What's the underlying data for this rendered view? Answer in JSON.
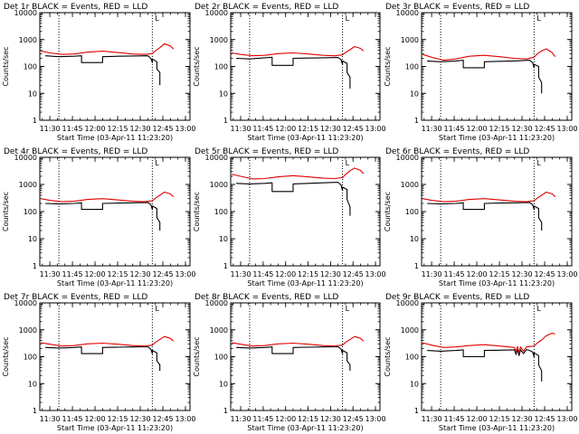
{
  "colors": {
    "events": "#000000",
    "lld": "#e00000",
    "background": "#ffffff",
    "frame": "#000000"
  },
  "chart_data": [
    {
      "type": "line",
      "title": "Det 1r BLACK = Events, RED = LLD",
      "flag": "L",
      "xlabel": "Start Time (03-Apr-11 11:23:20)",
      "ylabel": "Counts/sec",
      "x_ticks": [
        "11:30",
        "11:45",
        "12:00",
        "12:15",
        "12:30",
        "12:45",
        "13:00"
      ],
      "y_ticks": [
        "1",
        "10",
        "100",
        "1000",
        "10000"
      ],
      "yscale": "log",
      "xlim": [
        "11:23:20",
        "13:03:00"
      ],
      "ylim": [
        1,
        10000
      ],
      "vlines": [
        "11:36",
        "12:38"
      ],
      "series": [
        {
          "name": "Events",
          "color": "#000000",
          "x": [
            "11:27",
            "11:36",
            "11:46",
            "11:51",
            "11:51",
            "12:05",
            "12:05",
            "12:15",
            "12:25",
            "12:35",
            "12:37",
            "12:38",
            "12:38",
            "12:41",
            "12:41",
            "12:43",
            "12:43"
          ],
          "y": [
            250,
            230,
            240,
            250,
            140,
            140,
            230,
            240,
            245,
            250,
            200,
            140,
            190,
            150,
            80,
            60,
            20
          ]
        },
        {
          "name": "LLD",
          "color": "#e00000",
          "x": [
            "11:24",
            "11:30",
            "11:38",
            "11:46",
            "11:55",
            "12:05",
            "12:15",
            "12:25",
            "12:33",
            "12:38",
            "12:40",
            "12:43",
            "12:46",
            "12:50",
            "12:52"
          ],
          "y": [
            380,
            320,
            280,
            290,
            340,
            370,
            330,
            290,
            280,
            300,
            380,
            500,
            700,
            580,
            450
          ]
        }
      ]
    },
    {
      "type": "line",
      "title": "Det 2r BLACK = Events, RED = LLD",
      "flag": "L",
      "xlabel": "Start Time (03-Apr-11 11:23:20)",
      "ylabel": "Counts/sec",
      "x_ticks": [
        "11:30",
        "11:45",
        "12:00",
        "12:15",
        "12:30",
        "12:45",
        "13:00"
      ],
      "y_ticks": [
        "1",
        "10",
        "100",
        "1000",
        "10000"
      ],
      "yscale": "log",
      "xlim": [
        "11:23:20",
        "13:03:00"
      ],
      "ylim": [
        1,
        10000
      ],
      "vlines": [
        "11:36",
        "12:38"
      ],
      "series": [
        {
          "name": "Events",
          "color": "#000000",
          "x": [
            "11:27",
            "11:36",
            "11:46",
            "11:51",
            "11:51",
            "12:05",
            "12:05",
            "12:15",
            "12:25",
            "12:35",
            "12:37",
            "12:38",
            "12:38",
            "12:41",
            "12:41",
            "12:43",
            "12:43"
          ],
          "y": [
            200,
            190,
            210,
            220,
            110,
            110,
            200,
            205,
            210,
            215,
            180,
            120,
            160,
            130,
            60,
            40,
            15
          ]
        },
        {
          "name": "LLD",
          "color": "#e00000",
          "x": [
            "11:24",
            "11:30",
            "11:38",
            "11:46",
            "11:55",
            "12:05",
            "12:15",
            "12:25",
            "12:33",
            "12:38",
            "12:40",
            "12:43",
            "12:46",
            "12:50",
            "12:52"
          ],
          "y": [
            320,
            280,
            250,
            260,
            300,
            320,
            290,
            260,
            250,
            270,
            330,
            420,
            550,
            470,
            380
          ]
        }
      ]
    },
    {
      "type": "line",
      "title": "Det 3r BLACK = Events, RED = LLD",
      "flag": "L",
      "xlabel": "Start Time (03-Apr-11 11:23:20)",
      "ylabel": "Counts/sec",
      "x_ticks": [
        "11:30",
        "11:45",
        "12:00",
        "12:15",
        "12:30",
        "12:45",
        "13:00"
      ],
      "y_ticks": [
        "1",
        "10",
        "100",
        "1000",
        "10000"
      ],
      "yscale": "log",
      "xlim": [
        "11:23:20",
        "13:03:00"
      ],
      "ylim": [
        1,
        10000
      ],
      "vlines": [
        "11:36",
        "12:38"
      ],
      "series": [
        {
          "name": "Events",
          "color": "#000000",
          "x": [
            "11:27",
            "11:36",
            "11:46",
            "11:51",
            "11:51",
            "12:05",
            "12:05",
            "12:15",
            "12:25",
            "12:35",
            "12:37",
            "12:38",
            "12:38",
            "12:41",
            "12:41",
            "12:43",
            "12:43"
          ],
          "y": [
            160,
            150,
            160,
            170,
            90,
            90,
            150,
            155,
            160,
            170,
            140,
            90,
            120,
            100,
            40,
            25,
            10
          ]
        },
        {
          "name": "LLD",
          "color": "#e00000",
          "x": [
            "11:24",
            "11:30",
            "11:38",
            "11:46",
            "11:55",
            "12:05",
            "12:15",
            "12:25",
            "12:33",
            "12:38",
            "12:40",
            "12:43",
            "12:46",
            "12:50",
            "12:52"
          ],
          "y": [
            280,
            220,
            170,
            190,
            240,
            260,
            230,
            200,
            190,
            220,
            290,
            380,
            450,
            330,
            230
          ]
        }
      ]
    },
    {
      "type": "line",
      "title": "Det 4r BLACK = Events, RED = LLD",
      "flag": "L",
      "xlabel": "Start Time (03-Apr-11 11:23:20)",
      "ylabel": "Counts/sec",
      "x_ticks": [
        "11:30",
        "11:45",
        "12:00",
        "12:15",
        "12:30",
        "12:45",
        "13:00"
      ],
      "y_ticks": [
        "1",
        "10",
        "100",
        "1000",
        "10000"
      ],
      "yscale": "log",
      "xlim": [
        "11:23:20",
        "13:03:00"
      ],
      "ylim": [
        1,
        10000
      ],
      "vlines": [
        "11:36",
        "12:38"
      ],
      "series": [
        {
          "name": "Events",
          "color": "#000000",
          "x": [
            "11:27",
            "11:36",
            "11:46",
            "11:51",
            "11:51",
            "12:05",
            "12:05",
            "12:15",
            "12:25",
            "12:35",
            "12:37",
            "12:38",
            "12:38",
            "12:41",
            "12:41",
            "12:43",
            "12:43"
          ],
          "y": [
            200,
            190,
            200,
            210,
            120,
            120,
            200,
            205,
            210,
            215,
            180,
            120,
            160,
            130,
            60,
            40,
            20
          ]
        },
        {
          "name": "LLD",
          "color": "#e00000",
          "x": [
            "11:24",
            "11:30",
            "11:38",
            "11:46",
            "11:55",
            "12:05",
            "12:15",
            "12:25",
            "12:33",
            "12:38",
            "12:40",
            "12:43",
            "12:46",
            "12:50",
            "12:52"
          ],
          "y": [
            300,
            260,
            230,
            240,
            280,
            300,
            270,
            240,
            230,
            250,
            310,
            400,
            520,
            450,
            350
          ]
        }
      ]
    },
    {
      "type": "line",
      "title": "Det 5r BLACK = Events, RED = LLD",
      "flag": "L",
      "xlabel": "Start Time (03-Apr-11 11:23:20)",
      "ylabel": "Counts/sec",
      "x_ticks": [
        "11:30",
        "11:45",
        "12:00",
        "12:15",
        "12:30",
        "12:45",
        "13:00"
      ],
      "y_ticks": [
        "1",
        "10",
        "100",
        "1000",
        "10000"
      ],
      "yscale": "log",
      "xlim": [
        "11:23:20",
        "13:03:00"
      ],
      "ylim": [
        1,
        10000
      ],
      "vlines": [
        "11:36",
        "12:38"
      ],
      "series": [
        {
          "name": "Events",
          "color": "#000000",
          "x": [
            "11:27",
            "11:36",
            "11:46",
            "11:51",
            "11:51",
            "12:05",
            "12:05",
            "12:15",
            "12:25",
            "12:35",
            "12:37",
            "12:38",
            "12:38",
            "12:41",
            "12:41",
            "12:43",
            "12:43"
          ],
          "y": [
            1100,
            1050,
            1100,
            1150,
            550,
            550,
            1050,
            1100,
            1150,
            1200,
            950,
            600,
            800,
            650,
            280,
            150,
            70
          ]
        },
        {
          "name": "LLD",
          "color": "#e00000",
          "x": [
            "11:24",
            "11:30",
            "11:38",
            "11:46",
            "11:55",
            "12:05",
            "12:15",
            "12:25",
            "12:33",
            "12:38",
            "12:40",
            "12:43",
            "12:46",
            "12:50",
            "12:52"
          ],
          "y": [
            2400,
            2000,
            1600,
            1650,
            1900,
            2100,
            1900,
            1700,
            1650,
            1800,
            2300,
            3200,
            4000,
            3300,
            2500
          ]
        }
      ]
    },
    {
      "type": "line",
      "title": "Det 6r BLACK = Events, RED = LLD",
      "flag": "L",
      "xlabel": "Start Time (03-Apr-11 11:23:20)",
      "ylabel": "Counts/sec",
      "x_ticks": [
        "11:30",
        "11:45",
        "12:00",
        "12:15",
        "12:30",
        "12:45",
        "13:00"
      ],
      "y_ticks": [
        "1",
        "10",
        "100",
        "1000",
        "10000"
      ],
      "yscale": "log",
      "xlim": [
        "11:23:20",
        "13:03:00"
      ],
      "ylim": [
        1,
        10000
      ],
      "vlines": [
        "11:36",
        "12:38"
      ],
      "series": [
        {
          "name": "Events",
          "color": "#000000",
          "x": [
            "11:27",
            "11:36",
            "11:46",
            "11:51",
            "11:51",
            "12:05",
            "12:05",
            "12:15",
            "12:25",
            "12:35",
            "12:37",
            "12:38",
            "12:38",
            "12:41",
            "12:41",
            "12:43",
            "12:43"
          ],
          "y": [
            200,
            190,
            200,
            210,
            120,
            120,
            200,
            205,
            210,
            215,
            180,
            120,
            160,
            130,
            60,
            40,
            20
          ]
        },
        {
          "name": "LLD",
          "color": "#e00000",
          "x": [
            "11:24",
            "11:30",
            "11:38",
            "11:46",
            "11:55",
            "12:05",
            "12:15",
            "12:25",
            "12:33",
            "12:38",
            "12:40",
            "12:43",
            "12:46",
            "12:50",
            "12:52"
          ],
          "y": [
            300,
            260,
            230,
            240,
            280,
            300,
            270,
            240,
            230,
            250,
            310,
            400,
            520,
            450,
            350
          ]
        }
      ]
    },
    {
      "type": "line",
      "title": "Det 7r BLACK = Events, RED = LLD",
      "flag": "L",
      "xlabel": "Start Time (03-Apr-11 11:23:20)",
      "ylabel": "Counts/sec",
      "x_ticks": [
        "11:30",
        "11:45",
        "12:00",
        "12:15",
        "12:30",
        "12:45",
        "13:00"
      ],
      "y_ticks": [
        "1",
        "10",
        "100",
        "1000",
        "10000"
      ],
      "yscale": "log",
      "xlim": [
        "11:23:20",
        "13:03:00"
      ],
      "ylim": [
        1,
        10000
      ],
      "vlines": [
        "11:36",
        "12:38"
      ],
      "series": [
        {
          "name": "Events",
          "color": "#000000",
          "x": [
            "11:27",
            "11:36",
            "11:46",
            "11:51",
            "11:51",
            "12:05",
            "12:05",
            "12:15",
            "12:25",
            "12:35",
            "12:37",
            "12:38",
            "12:38",
            "12:41",
            "12:41",
            "12:43",
            "12:43"
          ],
          "y": [
            220,
            210,
            220,
            230,
            130,
            130,
            220,
            225,
            230,
            235,
            190,
            130,
            170,
            140,
            70,
            50,
            30
          ]
        },
        {
          "name": "LLD",
          "color": "#e00000",
          "x": [
            "11:24",
            "11:30",
            "11:38",
            "11:46",
            "11:55",
            "12:05",
            "12:15",
            "12:25",
            "12:33",
            "12:38",
            "12:40",
            "12:43",
            "12:46",
            "12:50",
            "12:52"
          ],
          "y": [
            330,
            290,
            250,
            260,
            300,
            320,
            290,
            260,
            250,
            270,
            340,
            440,
            560,
            480,
            380
          ]
        }
      ]
    },
    {
      "type": "line",
      "title": "Det 8r BLACK = Events, RED = LLD",
      "flag": "L",
      "xlabel": "Start Time (03-Apr-11 11:23:20)",
      "ylabel": "Counts/sec",
      "x_ticks": [
        "11:30",
        "11:45",
        "12:00",
        "12:15",
        "12:30",
        "12:45",
        "13:00"
      ],
      "y_ticks": [
        "1",
        "10",
        "100",
        "1000",
        "10000"
      ],
      "yscale": "log",
      "xlim": [
        "11:23:20",
        "13:03:00"
      ],
      "ylim": [
        1,
        10000
      ],
      "vlines": [
        "11:36",
        "12:38"
      ],
      "series": [
        {
          "name": "Events",
          "color": "#000000",
          "x": [
            "11:27",
            "11:36",
            "11:46",
            "11:51",
            "11:51",
            "12:05",
            "12:05",
            "12:15",
            "12:25",
            "12:35",
            "12:37",
            "12:38",
            "12:38",
            "12:41",
            "12:41",
            "12:43",
            "12:43"
          ],
          "y": [
            220,
            210,
            220,
            230,
            130,
            130,
            220,
            225,
            230,
            235,
            190,
            130,
            170,
            140,
            70,
            50,
            30
          ]
        },
        {
          "name": "LLD",
          "color": "#e00000",
          "x": [
            "11:24",
            "11:30",
            "11:38",
            "11:46",
            "11:55",
            "12:05",
            "12:15",
            "12:25",
            "12:33",
            "12:38",
            "12:40",
            "12:43",
            "12:46",
            "12:50",
            "12:52"
          ],
          "y": [
            330,
            290,
            250,
            260,
            300,
            320,
            290,
            260,
            250,
            270,
            340,
            440,
            560,
            480,
            380
          ]
        }
      ]
    },
    {
      "type": "line",
      "title": "Det 9r BLACK = Events, RED = LLD",
      "flag": "L",
      "xlabel": "Start Time (03-Apr-11 11:23:20)",
      "ylabel": "Counts/sec",
      "x_ticks": [
        "11:30",
        "11:45",
        "12:00",
        "12:15",
        "12:30",
        "12:45",
        "13:00"
      ],
      "y_ticks": [
        "1",
        "10",
        "100",
        "1000",
        "10000"
      ],
      "yscale": "log",
      "xlim": [
        "11:23:20",
        "13:03:00"
      ],
      "ylim": [
        1,
        10000
      ],
      "vlines": [
        "11:36",
        "12:38"
      ],
      "series": [
        {
          "name": "Events",
          "color": "#000000",
          "x": [
            "11:27",
            "11:36",
            "11:46",
            "11:51",
            "11:51",
            "12:05",
            "12:05",
            "12:15",
            "12:25",
            "12:26",
            "12:27",
            "12:28",
            "12:29",
            "12:31",
            "12:33",
            "12:35",
            "12:37",
            "12:38",
            "12:38",
            "12:41",
            "12:41",
            "12:43",
            "12:43"
          ],
          "y": [
            170,
            160,
            170,
            180,
            100,
            100,
            170,
            175,
            180,
            120,
            190,
            110,
            180,
            130,
            185,
            170,
            150,
            100,
            140,
            110,
            50,
            30,
            12
          ]
        },
        {
          "name": "LLD",
          "color": "#e00000",
          "x": [
            "11:24",
            "11:30",
            "11:38",
            "11:46",
            "11:55",
            "12:05",
            "12:15",
            "12:25",
            "12:26",
            "12:27",
            "12:28",
            "12:29",
            "12:31",
            "12:33",
            "12:38",
            "12:40",
            "12:43",
            "12:46",
            "12:50",
            "12:52"
          ],
          "y": [
            330,
            270,
            220,
            230,
            260,
            280,
            250,
            220,
            150,
            240,
            140,
            230,
            160,
            230,
            250,
            320,
            420,
            600,
            750,
            700
          ]
        }
      ]
    }
  ]
}
